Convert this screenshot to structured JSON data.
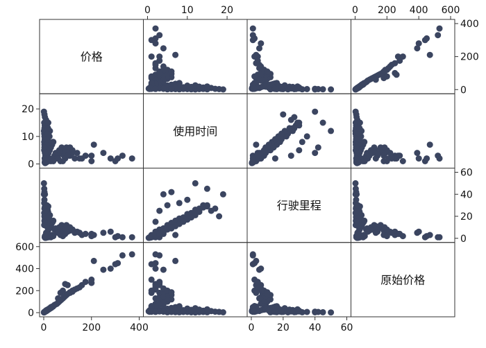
{
  "chart_data": {
    "type": "scatter",
    "subtype": "scatter-matrix",
    "variables": [
      {
        "label": "价格",
        "range": [
          0,
          400
        ],
        "ticks": [
          0,
          200,
          400
        ]
      },
      {
        "label": "使用时间",
        "range": [
          0,
          24
        ],
        "ticks": [
          0,
          10,
          20
        ]
      },
      {
        "label": "行驶里程",
        "range": [
          0,
          60
        ],
        "ticks": [
          0,
          20,
          40,
          60
        ]
      },
      {
        "label": "原始价格",
        "range": [
          0,
          600
        ],
        "ticks": [
          0,
          200,
          400,
          600
        ]
      }
    ],
    "marker_color": "#3b4560",
    "points": [
      [
        5,
        1,
        2,
        8
      ],
      [
        8,
        2,
        3,
        12
      ],
      [
        10,
        2,
        5,
        15
      ],
      [
        12,
        3,
        4,
        18
      ],
      [
        15,
        3,
        6,
        22
      ],
      [
        18,
        4,
        7,
        25
      ],
      [
        20,
        4,
        8,
        28
      ],
      [
        22,
        5,
        9,
        32
      ],
      [
        25,
        5,
        10,
        35
      ],
      [
        28,
        6,
        11,
        40
      ],
      [
        30,
        6,
        12,
        42
      ],
      [
        32,
        7,
        13,
        45
      ],
      [
        35,
        7,
        14,
        50
      ],
      [
        38,
        8,
        15,
        55
      ],
      [
        40,
        8,
        16,
        58
      ],
      [
        6,
        9,
        18,
        10
      ],
      [
        9,
        10,
        20,
        14
      ],
      [
        12,
        11,
        22,
        16
      ],
      [
        14,
        12,
        24,
        20
      ],
      [
        16,
        13,
        26,
        24
      ],
      [
        4,
        14,
        28,
        6
      ],
      [
        7,
        15,
        30,
        11
      ],
      [
        10,
        16,
        25,
        14
      ],
      [
        5,
        17,
        27,
        9
      ],
      [
        3,
        18,
        20,
        7
      ],
      [
        45,
        3,
        8,
        70
      ],
      [
        50,
        4,
        9,
        75
      ],
      [
        55,
        2,
        6,
        80
      ],
      [
        60,
        3,
        7,
        90
      ],
      [
        65,
        5,
        10,
        100
      ],
      [
        70,
        4,
        8,
        110
      ],
      [
        75,
        6,
        12,
        120
      ],
      [
        80,
        5,
        11,
        130
      ],
      [
        85,
        3,
        6,
        140
      ],
      [
        90,
        4,
        9,
        150
      ],
      [
        95,
        6,
        12,
        160
      ],
      [
        100,
        5,
        10,
        170
      ],
      [
        110,
        3,
        7,
        180
      ],
      [
        120,
        4,
        8,
        190
      ],
      [
        130,
        2,
        5,
        210
      ],
      [
        90,
        2,
        4,
        260
      ],
      [
        100,
        3,
        6,
        250
      ],
      [
        70,
        1,
        3,
        180
      ],
      [
        60,
        2,
        5,
        130
      ],
      [
        80,
        1,
        2,
        200
      ],
      [
        2,
        5,
        12,
        4
      ],
      [
        3,
        7,
        16,
        5
      ],
      [
        4,
        9,
        19,
        6
      ],
      [
        2,
        11,
        23,
        3
      ],
      [
        3,
        13,
        27,
        5
      ],
      [
        6,
        6,
        14,
        9
      ],
      [
        8,
        8,
        18,
        11
      ],
      [
        9,
        10,
        22,
        13
      ],
      [
        11,
        12,
        26,
        15
      ],
      [
        13,
        14,
        30,
        17
      ],
      [
        1,
        19,
        40,
        3
      ],
      [
        2,
        15,
        45,
        4
      ],
      [
        1,
        12,
        50,
        2
      ],
      [
        3,
        10,
        35,
        6
      ],
      [
        2,
        8,
        32,
        4
      ],
      [
        20,
        1,
        1,
        30
      ],
      [
        25,
        2,
        2,
        40
      ],
      [
        30,
        1,
        1,
        50
      ],
      [
        35,
        2,
        3,
        55
      ],
      [
        40,
        1,
        2,
        60
      ],
      [
        15,
        4,
        4,
        25
      ],
      [
        18,
        6,
        9,
        30
      ],
      [
        22,
        8,
        13,
        34
      ],
      [
        24,
        10,
        17,
        37
      ],
      [
        26,
        12,
        21,
        40
      ],
      [
        10,
        0.5,
        0.5,
        20
      ],
      [
        14,
        0.8,
        0.8,
        26
      ],
      [
        6,
        0.3,
        0.4,
        12
      ],
      [
        4,
        0.5,
        1,
        8
      ],
      [
        8,
        1.5,
        1.5,
        14
      ],
      [
        12,
        7,
        11,
        19
      ],
      [
        14,
        9,
        15,
        22
      ],
      [
        16,
        11,
        19,
        25
      ],
      [
        18,
        13,
        24,
        28
      ],
      [
        19,
        15,
        29,
        30
      ],
      [
        7,
        3,
        25,
        11
      ],
      [
        9,
        5,
        30,
        13
      ],
      [
        5,
        4,
        40,
        9
      ],
      [
        3,
        6,
        42,
        6
      ],
      [
        4,
        2,
        15,
        7
      ],
      [
        160,
        2,
        3,
        250
      ],
      [
        200,
        3,
        4,
        270
      ],
      [
        200,
        1,
        2,
        300
      ],
      [
        250,
        4,
        5,
        390
      ],
      [
        300,
        1,
        1,
        440
      ],
      [
        310,
        2,
        2,
        450
      ],
      [
        330,
        3,
        1,
        520
      ],
      [
        370,
        2,
        1,
        530
      ],
      [
        210,
        7,
        3,
        470
      ],
      [
        280,
        2,
        6,
        400
      ],
      [
        140,
        4,
        6,
        220
      ],
      [
        150,
        2,
        5,
        230
      ],
      [
        175,
        3,
        4,
        280
      ],
      [
        120,
        5,
        8,
        200
      ],
      [
        110,
        6,
        10,
        185
      ]
    ]
  }
}
